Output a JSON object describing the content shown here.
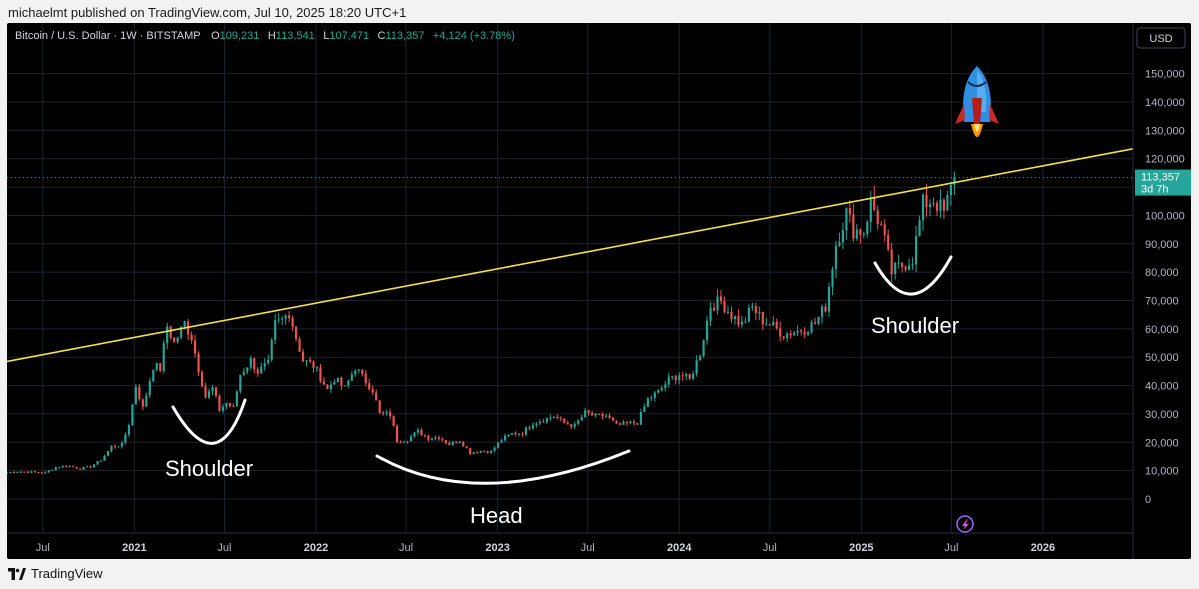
{
  "header": {
    "publisher_line": "michaelmt published on TradingView.com, Jul 10, 2025 18:20 UTC+1"
  },
  "footer": {
    "brand": "TradingView",
    "logo_icon": "tradingview-logo-icon"
  },
  "colors": {
    "background": "#000000",
    "up": "#26a69a",
    "down": "#ef5350",
    "trendline": "#f5e14c",
    "annotation": "#ffffff",
    "price_badge": "#26a69a",
    "grid": "#1e222d"
  },
  "chart_data": {
    "type": "candlestick",
    "symbol_label": "Bitcoin / U.S. Dollar · 1W · BITSTAMP",
    "ohlc": {
      "o_label": "O",
      "o_value": "109,231",
      "h_label": "H",
      "h_value": "113,541",
      "l_label": "L",
      "l_value": "107,471",
      "c_label": "C",
      "c_value": "113,357",
      "change": "+4,124 (+3.78%)"
    },
    "currency": "USD",
    "last_price": "113,357",
    "last_price_value": 113357,
    "countdown": "3d 7h",
    "y_ticks": [
      "150,000",
      "140,000",
      "130,000",
      "120,000",
      "110,000",
      "100,000",
      "90,000",
      "80,000",
      "70,000",
      "60,000",
      "50,000",
      "40,000",
      "30,000",
      "20,000",
      "10,000",
      "0"
    ],
    "y_tick_values": [
      150000,
      140000,
      130000,
      120000,
      110000,
      100000,
      90000,
      80000,
      70000,
      60000,
      50000,
      40000,
      30000,
      20000,
      10000,
      0
    ],
    "ylim": [
      -12000,
      158000
    ],
    "x_ticks": [
      {
        "label": "Jul",
        "date": "2020-07-01",
        "year": false
      },
      {
        "label": "2021",
        "date": "2021-01-01",
        "year": true
      },
      {
        "label": "Jul",
        "date": "2021-07-01",
        "year": false
      },
      {
        "label": "2022",
        "date": "2022-01-01",
        "year": true
      },
      {
        "label": "Jul",
        "date": "2022-07-01",
        "year": false
      },
      {
        "label": "2023",
        "date": "2023-01-01",
        "year": true
      },
      {
        "label": "Jul",
        "date": "2023-07-01",
        "year": false
      },
      {
        "label": "2024",
        "date": "2024-01-01",
        "year": true
      },
      {
        "label": "Jul",
        "date": "2024-07-01",
        "year": false
      },
      {
        "label": "2025",
        "date": "2025-01-01",
        "year": true
      },
      {
        "label": "Jul",
        "date": "2025-07-01",
        "year": false
      },
      {
        "label": "2026",
        "date": "2026-01-01",
        "year": true
      }
    ],
    "xlim": [
      "2020-04-20",
      "2026-07-01"
    ],
    "trendline": {
      "x1": "2020-04-20",
      "y1": 48500,
      "x2": "2026-07-01",
      "y2": 123500
    },
    "annotations": {
      "shoulder_left": "Shoulder",
      "head": "Head",
      "shoulder_right": "Shoulder"
    },
    "icons": [
      "rocket-icon",
      "replay-icon"
    ],
    "weekly_close": [
      [
        "2020-04-20",
        9300
      ],
      [
        "2020-05-11",
        9700
      ],
      [
        "2020-06-08",
        9500
      ],
      [
        "2020-07-06",
        9300
      ],
      [
        "2020-07-27",
        11100
      ],
      [
        "2020-08-17",
        11800
      ],
      [
        "2020-09-14",
        10700
      ],
      [
        "2020-10-05",
        11400
      ],
      [
        "2020-10-26",
        13800
      ],
      [
        "2020-11-16",
        18400
      ],
      [
        "2020-12-07",
        19200
      ],
      [
        "2020-12-21",
        26500
      ],
      [
        "2021-01-04",
        40000
      ],
      [
        "2021-01-18",
        32000
      ],
      [
        "2021-02-08",
        47000
      ],
      [
        "2021-02-22",
        46000
      ],
      [
        "2021-03-08",
        61000
      ],
      [
        "2021-03-22",
        55000
      ],
      [
        "2021-04-12",
        62000
      ],
      [
        "2021-04-26",
        57000
      ],
      [
        "2021-05-10",
        46000
      ],
      [
        "2021-05-24",
        36000
      ],
      [
        "2021-06-07",
        39000
      ],
      [
        "2021-06-21",
        31500
      ],
      [
        "2021-07-05",
        33800
      ],
      [
        "2021-07-19",
        32000
      ],
      [
        "2021-08-02",
        44000
      ],
      [
        "2021-08-23",
        48900
      ],
      [
        "2021-09-06",
        45000
      ],
      [
        "2021-09-27",
        47500
      ],
      [
        "2021-10-11",
        61500
      ],
      [
        "2021-10-25",
        63000
      ],
      [
        "2021-11-08",
        66000
      ],
      [
        "2021-11-22",
        57000
      ],
      [
        "2021-12-06",
        49000
      ],
      [
        "2021-12-27",
        47000
      ],
      [
        "2022-01-10",
        43000
      ],
      [
        "2022-01-24",
        38500
      ],
      [
        "2022-02-07",
        42500
      ],
      [
        "2022-02-28",
        39000
      ],
      [
        "2022-03-21",
        46500
      ],
      [
        "2022-04-04",
        43000
      ],
      [
        "2022-04-25",
        38500
      ],
      [
        "2022-05-09",
        30000
      ],
      [
        "2022-05-30",
        29800
      ],
      [
        "2022-06-13",
        20500
      ],
      [
        "2022-07-04",
        21000
      ],
      [
        "2022-07-25",
        23800
      ],
      [
        "2022-08-15",
        21500
      ],
      [
        "2022-09-05",
        21800
      ],
      [
        "2022-09-26",
        19300
      ],
      [
        "2022-10-17",
        20700
      ],
      [
        "2022-11-07",
        16300
      ],
      [
        "2022-11-28",
        17000
      ],
      [
        "2022-12-19",
        16800
      ],
      [
        "2023-01-09",
        20900
      ],
      [
        "2023-01-30",
        23000
      ],
      [
        "2023-02-20",
        23400
      ],
      [
        "2023-03-13",
        26900
      ],
      [
        "2023-04-03",
        28000
      ],
      [
        "2023-04-24",
        29200
      ],
      [
        "2023-05-15",
        26800
      ],
      [
        "2023-06-05",
        25800
      ],
      [
        "2023-06-26",
        30400
      ],
      [
        "2023-07-17",
        29100
      ],
      [
        "2023-08-07",
        29400
      ],
      [
        "2023-08-28",
        25900
      ],
      [
        "2023-09-18",
        26500
      ],
      [
        "2023-10-09",
        27000
      ],
      [
        "2023-10-30",
        35100
      ],
      [
        "2023-11-20",
        37700
      ],
      [
        "2023-12-11",
        42000
      ],
      [
        "2024-01-01",
        44000
      ],
      [
        "2024-01-22",
        42000
      ],
      [
        "2024-02-12",
        51600
      ],
      [
        "2024-03-04",
        68300
      ],
      [
        "2024-03-25",
        69700
      ],
      [
        "2024-04-15",
        64900
      ],
      [
        "2024-05-06",
        61500
      ],
      [
        "2024-05-27",
        67500
      ],
      [
        "2024-06-17",
        63000
      ],
      [
        "2024-07-08",
        60800
      ],
      [
        "2024-07-29",
        58100
      ],
      [
        "2024-08-19",
        59000
      ],
      [
        "2024-09-09",
        60000
      ],
      [
        "2024-09-30",
        62000
      ],
      [
        "2024-10-21",
        68000
      ],
      [
        "2024-11-11",
        90000
      ],
      [
        "2024-12-02",
        101000
      ],
      [
        "2024-12-16",
        95000
      ],
      [
        "2025-01-06",
        94500
      ],
      [
        "2025-01-20",
        104700
      ],
      [
        "2025-02-10",
        96000
      ],
      [
        "2025-03-03",
        80000
      ],
      [
        "2025-03-24",
        82400
      ],
      [
        "2025-04-14",
        85000
      ],
      [
        "2025-05-05",
        104000
      ],
      [
        "2025-05-26",
        105700
      ],
      [
        "2025-06-16",
        100900
      ],
      [
        "2025-07-07",
        113357
      ]
    ]
  }
}
